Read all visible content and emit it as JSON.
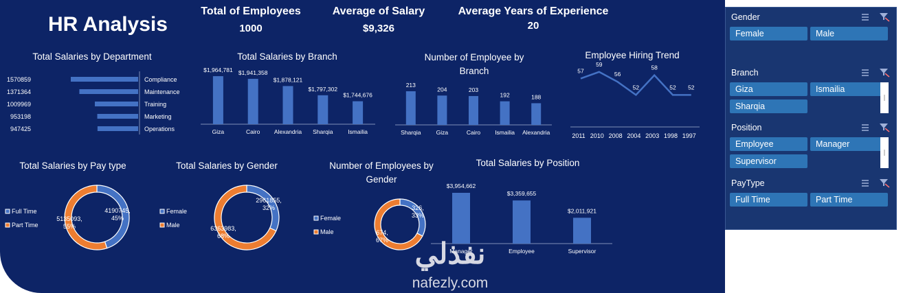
{
  "dashboard": {
    "title": "HR Analysis",
    "kpis": [
      {
        "label": "Total of Employees",
        "value": "1000"
      },
      {
        "label": "Average of Salary",
        "value": "$9,326"
      },
      {
        "label": "Average Years of Experience",
        "value": "20"
      }
    ],
    "watermark": {
      "arabic": "نفذلي",
      "latin": "nafezly.com"
    }
  },
  "slicers": [
    {
      "title": "Gender",
      "items": [
        "Female",
        "Male"
      ]
    },
    {
      "title": "Branch",
      "items": [
        "Giza",
        "Ismailia",
        "Sharqia"
      ]
    },
    {
      "title": "Position",
      "items": [
        "Employee",
        "Manager",
        "Supervisor"
      ]
    },
    {
      "title": "PayType",
      "items": [
        "Full Time",
        "Part Time"
      ]
    }
  ],
  "colors": {
    "background": "#0d2466",
    "bar": "#4472c4",
    "blue": "#4472c4",
    "orange": "#ed7d31",
    "text": "#ffffff",
    "slicer_button": "#2e75b6"
  },
  "chart_data": [
    {
      "id": "dept",
      "type": "bar",
      "orientation": "horizontal",
      "title": "Total Salaries by Department",
      "categories": [
        "Compliance",
        "Maintenance",
        "Training",
        "Marketing",
        "Operations"
      ],
      "values": [
        1570859,
        1371364,
        1009969,
        953198,
        947425
      ],
      "data_labels": [
        "1570859",
        "1371364",
        "1009969",
        "953198",
        "947425"
      ]
    },
    {
      "id": "branch_salary",
      "type": "bar",
      "title": "Total Salaries by Branch",
      "categories": [
        "Giza",
        "Cairo",
        "Alexandria",
        "Sharqia",
        "Ismailia"
      ],
      "values": [
        1964781,
        1941358,
        1878121,
        1797302,
        1744676
      ],
      "data_labels": [
        "$1,964,781",
        "$1,941,358",
        "$1,878,121",
        "$1,797,302",
        "$1,744,676"
      ]
    },
    {
      "id": "branch_count",
      "type": "bar",
      "title": "Number of Employee by Branch",
      "categories": [
        "Sharqia",
        "Giza",
        "Cairo",
        "Ismailia",
        "Alexandria"
      ],
      "values": [
        213,
        204,
        203,
        192,
        188
      ],
      "data_labels": [
        "213",
        "204",
        "203",
        "192",
        "188"
      ]
    },
    {
      "id": "hiring",
      "type": "line",
      "title": "Employee Hiring Trend",
      "categories": [
        "2011",
        "2010",
        "2008",
        "2004",
        "2003",
        "1998",
        "1997"
      ],
      "values": [
        57,
        59,
        56,
        52,
        58,
        52,
        52
      ],
      "data_labels": [
        "57",
        "59",
        "56",
        "52",
        "58",
        "52",
        "52"
      ]
    },
    {
      "id": "paytype",
      "type": "pie",
      "variant": "donut",
      "title": "Total Salaries by Pay type",
      "legend": [
        "Full Time",
        "Part Time"
      ],
      "values": [
        4190745,
        5135093
      ],
      "data_labels": [
        "4190745, 45%",
        "5135093, 55%"
      ],
      "legend_position": "left"
    },
    {
      "id": "gender_salary",
      "type": "pie",
      "variant": "donut",
      "title": "Total Salaries by Gender",
      "legend": [
        "Female",
        "Male"
      ],
      "values": [
        2961855,
        6363983
      ],
      "data_labels": [
        "2961855, 32%",
        "6363983, 68%"
      ],
      "legend_position": "left"
    },
    {
      "id": "gender_count",
      "type": "pie",
      "variant": "donut",
      "title": "Number of Employees by Gender",
      "legend": [
        "Female",
        "Male"
      ],
      "values": [
        326,
        674
      ],
      "data_labels": [
        "326, 33%",
        "674, 67%"
      ],
      "legend_position": "left"
    },
    {
      "id": "position",
      "type": "bar",
      "title": "Total Salaries by Position",
      "categories": [
        "Manager",
        "Employee",
        "Supervisor"
      ],
      "values": [
        3954662,
        3359655,
        2011921
      ],
      "data_labels": [
        "$3,954,662",
        "$3,359,655",
        "$2,011,921"
      ]
    }
  ]
}
